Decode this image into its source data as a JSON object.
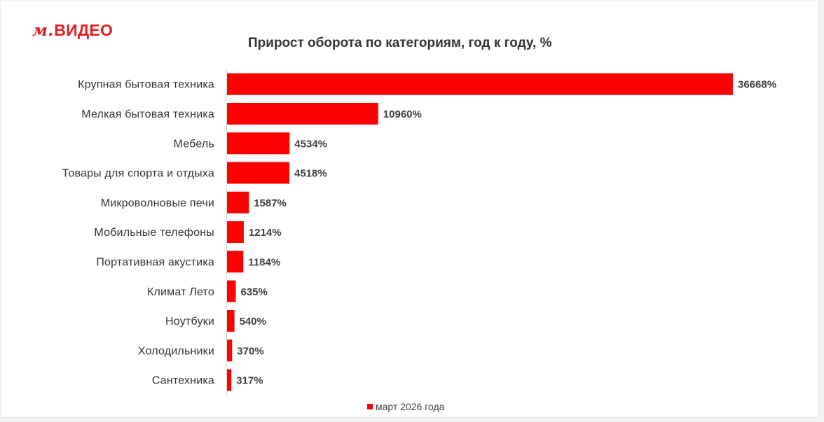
{
  "brand": {
    "logo_mark": "м.",
    "logo_text": "ВИДЕО"
  },
  "colors": {
    "bar": "#ff0000",
    "brand": "#e31e24"
  },
  "chart_data": {
    "type": "bar",
    "orientation": "horizontal",
    "title": "Прирост оборота по категориям, год к году, %",
    "categories": [
      "Крупная бытовая техника",
      "Мелкая бытовая техника",
      "Мебель",
      "Товары для спорта и отдыха",
      "Микроволновые печи",
      "Мобильные телефоны",
      "Портативная акустика",
      "Климат Лето",
      "Ноутбуки",
      "Холодильники",
      "Сантехника"
    ],
    "series": [
      {
        "name": "март 2026 года",
        "values": [
          36668,
          10960,
          4534,
          4518,
          1587,
          1214,
          1184,
          635,
          540,
          370,
          317
        ],
        "value_labels": [
          "36668%",
          "10960%",
          "4534%",
          "4518%",
          "1587%",
          "1214%",
          "1184%",
          "635%",
          "540%",
          "370%",
          "317%"
        ]
      }
    ],
    "xlim": [
      0,
      36668
    ],
    "grid": false,
    "legend_position": "bottom"
  }
}
